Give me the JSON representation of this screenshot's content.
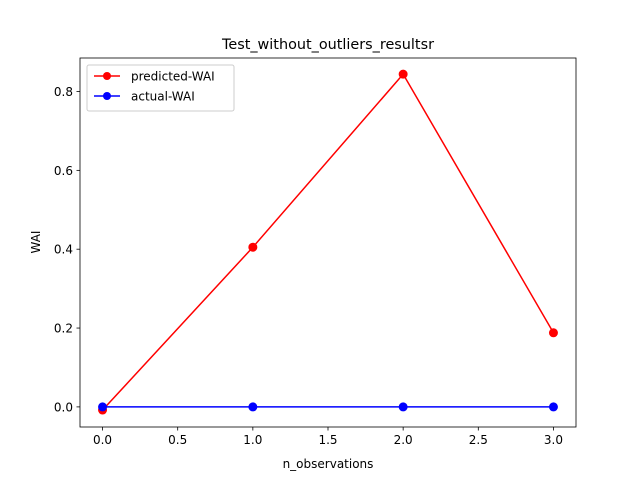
{
  "chart_data": {
    "type": "line",
    "title": "Test_without_outliers_resultsr",
    "xlabel": "n_observations",
    "ylabel": "WAI",
    "x": [
      0,
      1,
      2,
      3
    ],
    "xlim": [
      -0.15,
      3.15
    ],
    "ylim": [
      -0.051,
      0.885
    ],
    "xticks": [
      0.0,
      0.5,
      1.0,
      1.5,
      2.0,
      2.5,
      3.0
    ],
    "xtick_labels": [
      "0.0",
      "0.5",
      "1.0",
      "1.5",
      "2.0",
      "2.5",
      "3.0"
    ],
    "yticks": [
      0.0,
      0.2,
      0.4,
      0.6,
      0.8
    ],
    "ytick_labels": [
      "0.0",
      "0.2",
      "0.4",
      "0.6",
      "0.8"
    ],
    "grid": false,
    "legend_position": "top-left",
    "series": [
      {
        "name": "predicted-WAI",
        "color": "#ff0000",
        "marker": "circle",
        "values": [
          -0.008,
          0.405,
          0.844,
          0.188
        ]
      },
      {
        "name": "actual-WAI",
        "color": "#0000ff",
        "marker": "circle",
        "values": [
          0.0,
          0.0,
          0.0,
          0.0
        ]
      }
    ]
  }
}
